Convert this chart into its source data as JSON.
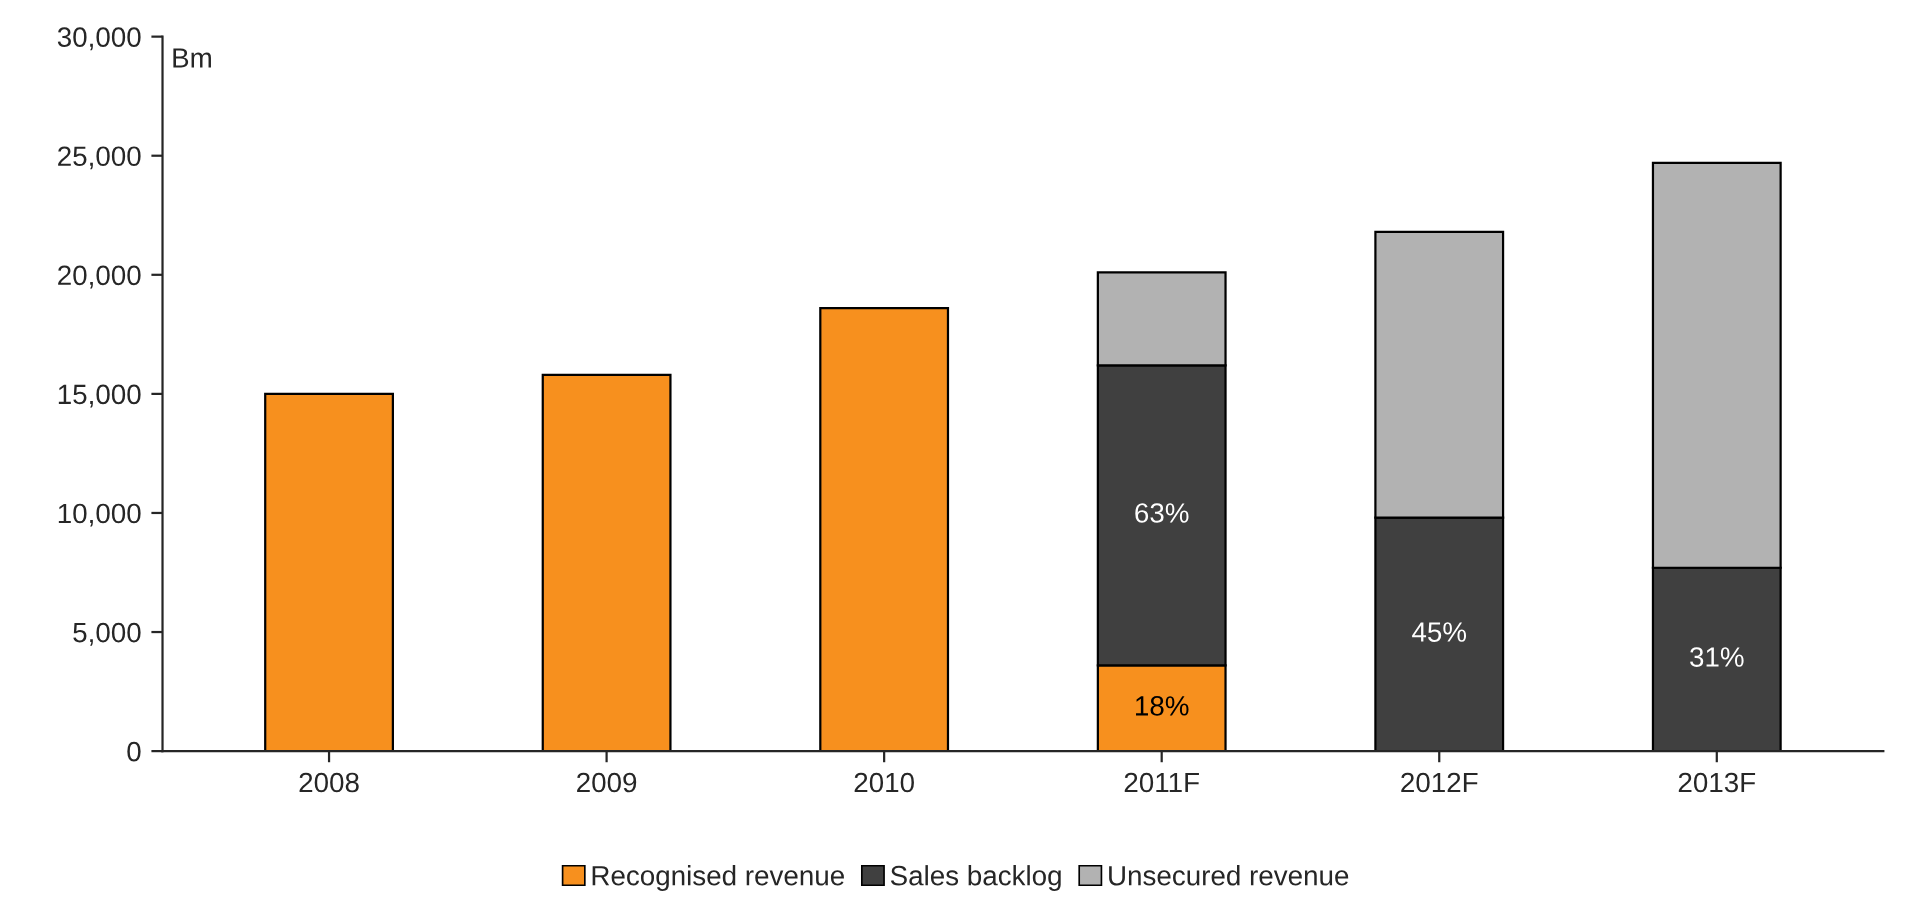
{
  "chart_data": {
    "type": "bar",
    "stacked": true,
    "ylabel": "Bm",
    "categories": [
      "2008",
      "2009",
      "2010",
      "2011F",
      "2012F",
      "2013F"
    ],
    "series": [
      {
        "name": "Recognised revenue",
        "color": "#f7901e",
        "values": [
          15000,
          15800,
          18600,
          3600,
          null,
          null
        ]
      },
      {
        "name": "Sales backlog",
        "color": "#404040",
        "values": [
          null,
          null,
          null,
          12600,
          9800,
          7700
        ]
      },
      {
        "name": "Unsecured revenue",
        "color": "#b2b2b2",
        "values": [
          null,
          null,
          null,
          3900,
          12000,
          17000
        ]
      }
    ],
    "ylim": [
      0,
      30000
    ],
    "yticks": [
      {
        "value": 0,
        "label": "0"
      },
      {
        "value": 5000,
        "label": "5,000"
      },
      {
        "value": 10000,
        "label": "10,000"
      },
      {
        "value": 15000,
        "label": "15,000"
      },
      {
        "value": 20000,
        "label": "20,000"
      },
      {
        "value": 25000,
        "label": "25,000"
      },
      {
        "value": 30000,
        "label": "30,000"
      }
    ],
    "annotations": [
      "18%",
      "63%",
      "45%",
      "31%"
    ],
    "grid": false,
    "legend": "bottom"
  }
}
